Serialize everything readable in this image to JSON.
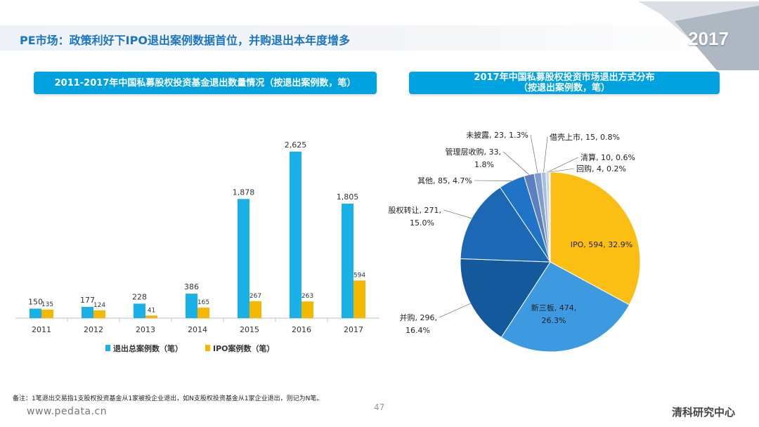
{
  "header": {
    "title": "PE市场：政策利好下IPO退出案例数据首位，并购退出本年度增多",
    "year_badge": "2017"
  },
  "left_panel": {
    "title": "2011-2017年中国私募股权投资基金退出数量情况（按退出案例数，笔）"
  },
  "right_panel": {
    "title_line1": "2017年中国私募股权投资市场退出方式分布",
    "title_line2": "（按退出案例数，笔）"
  },
  "chart_data": [
    {
      "type": "bar",
      "categories": [
        "2011",
        "2012",
        "2013",
        "2014",
        "2015",
        "2016",
        "2017"
      ],
      "series": [
        {
          "name": "退出总案例数（笔）",
          "values": [
            150,
            177,
            228,
            386,
            1878,
            2625,
            1805
          ],
          "labels": [
            "150",
            "177",
            "228",
            "386",
            "1,878",
            "2,625",
            "1,805"
          ],
          "color": "#1ab0e8"
        },
        {
          "name": "IPO案例数（笔）",
          "values": [
            135,
            124,
            41,
            165,
            267,
            263,
            594
          ],
          "labels": [
            "135",
            "124",
            "41",
            "165",
            "267",
            "263",
            "594"
          ],
          "color": "#f5b800"
        }
      ],
      "ylim": [
        0,
        2800
      ],
      "legend_position": "bottom",
      "grid": false
    },
    {
      "type": "pie",
      "slices": [
        {
          "name": "IPO",
          "value": 594,
          "percent": 32.9,
          "label1": "IPO, 594, 32.9%",
          "label2": "",
          "color": "#fbbf14"
        },
        {
          "name": "新三板",
          "value": 474,
          "percent": 26.3,
          "label1": "新三板, 474,",
          "label2": "26.3%",
          "color": "#3d9ae0"
        },
        {
          "name": "并购",
          "value": 296,
          "percent": 16.4,
          "label1": "并购, 296,",
          "label2": "16.4%",
          "color": "#14599c"
        },
        {
          "name": "股权转让",
          "value": 271,
          "percent": 15.0,
          "label1": "股权转让, 271,",
          "label2": "15.0%",
          "color": "#1d68b4"
        },
        {
          "name": "其他",
          "value": 85,
          "percent": 4.7,
          "label1": "其他, 85, 4.7%",
          "label2": "",
          "color": "#1f74c8"
        },
        {
          "name": "管理层收购",
          "value": 33,
          "percent": 1.8,
          "label1": "管理层收购, 33,",
          "label2": "1.8%",
          "color": "#5b7fbf"
        },
        {
          "name": "未披露",
          "value": 23,
          "percent": 1.3,
          "label1": "未披露, 23, 1.3%",
          "label2": "",
          "color": "#7f9fd4"
        },
        {
          "name": "借壳上市",
          "value": 15,
          "percent": 0.8,
          "label1": "借壳上市, 15, 0.8%",
          "label2": "",
          "color": "#a9bde3"
        },
        {
          "name": "清算",
          "value": 10,
          "percent": 0.6,
          "label1": "清算, 10, 0.6%",
          "label2": "",
          "color": "#c8d5ee"
        },
        {
          "name": "回购",
          "value": 4,
          "percent": 0.2,
          "label1": "回购, 4, 0.2%",
          "label2": "",
          "color": "#e0e7f5"
        }
      ]
    }
  ],
  "footer": {
    "note": "备注：1笔退出交易指1支股权投资基金从1家被投企业退出，如N支股权投资基金从1家企业退出，则记为N笔。",
    "page_number": "47",
    "website": "www.pedata.cn",
    "org": "清科研究中心"
  }
}
